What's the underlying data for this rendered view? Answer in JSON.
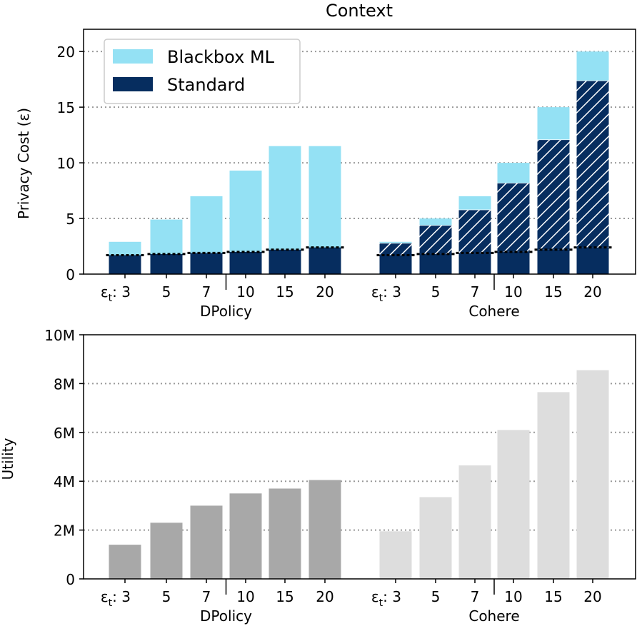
{
  "chart_data": [
    {
      "type": "bar",
      "title": "Context",
      "ylabel": "Privacy Cost (ε)",
      "ylim": [
        0,
        22
      ],
      "yticks": [
        0,
        5,
        10,
        15,
        20
      ],
      "grid": "horizontal dotted at y ticks",
      "legend": {
        "placement": "top-left",
        "entries": [
          {
            "name": "Blackbox ML",
            "color": "#94e1f4"
          },
          {
            "name": "Standard",
            "color": "#062d5f"
          }
        ]
      },
      "groups": [
        {
          "name": "DPolicy",
          "tick_labels": [
            "ε_t: 3",
            "5",
            "7",
            "10",
            "15",
            "20"
          ],
          "standard": [
            1.7,
            1.8,
            1.9,
            2.0,
            2.2,
            2.4
          ],
          "hatched": [
            0,
            0,
            0,
            0,
            0,
            0
          ],
          "blackbox_ml": [
            1.2,
            3.1,
            5.1,
            7.3,
            9.3,
            9.1
          ],
          "total": [
            2.9,
            4.9,
            7.0,
            9.3,
            11.5,
            11.5
          ]
        },
        {
          "name": "Cohere",
          "tick_labels": [
            "ε_t: 3",
            "5",
            "7",
            "10",
            "15",
            "20"
          ],
          "standard": [
            1.7,
            1.8,
            1.9,
            2.0,
            2.2,
            2.4
          ],
          "hatched": [
            1.1,
            2.6,
            3.9,
            6.2,
            9.9,
            15.0
          ],
          "blackbox_ml": [
            0.1,
            0.6,
            1.2,
            1.8,
            2.9,
            2.6
          ],
          "total": [
            2.9,
            5.0,
            7.0,
            10.0,
            15.0,
            20.0
          ]
        }
      ]
    },
    {
      "type": "bar",
      "ylabel": "Utility",
      "ylim": [
        0,
        10000000
      ],
      "yticks": [
        "0",
        "2M",
        "4M",
        "6M",
        "8M",
        "10M"
      ],
      "grid": "horizontal dotted at y ticks",
      "groups": [
        {
          "name": "DPolicy",
          "color": "#a8a8a8",
          "tick_labels": [
            "ε_t: 3",
            "5",
            "7",
            "10",
            "15",
            "20"
          ],
          "values": [
            1400000,
            2300000,
            3000000,
            3500000,
            3700000,
            4050000
          ]
        },
        {
          "name": "Cohere",
          "color": "#dddddd",
          "tick_labels": [
            "ε_t: 3",
            "5",
            "7",
            "10",
            "15",
            "20"
          ],
          "values": [
            1950000,
            3350000,
            4650000,
            6100000,
            7650000,
            8550000
          ]
        }
      ]
    }
  ]
}
